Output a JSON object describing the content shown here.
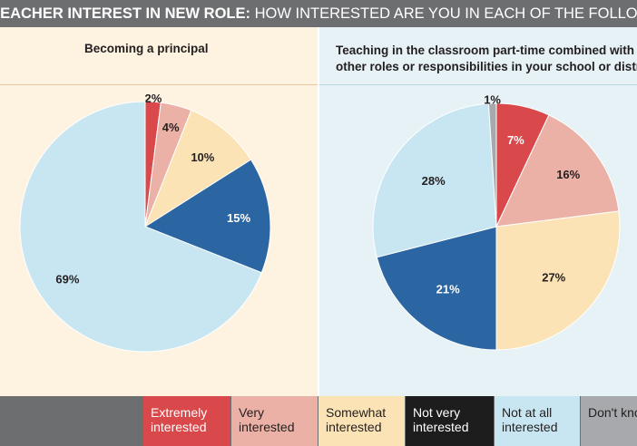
{
  "header": {
    "bold": "TEACHER INTEREST IN NEW ROLE:",
    "rest": " HOW INTERESTED ARE YOU IN EACH OF THE FOLLOWING?"
  },
  "chart_data": [
    {
      "type": "pie",
      "title": "Becoming a principal",
      "categories": [
        "Extremely interested",
        "Very interested",
        "Somewhat interested",
        "Not very interested",
        "Not at all interested"
      ],
      "values": [
        2,
        4,
        10,
        15,
        69
      ],
      "labels": [
        "2%",
        "4%",
        "10%",
        "15%",
        "69%"
      ]
    },
    {
      "type": "pie",
      "title": "Teaching in the classroom part-time combined with other roles or responsibilities in your school or district",
      "title_lines": [
        "Teaching in the classroom part-time combined with",
        "other roles or responsibilities in your school or district"
      ],
      "categories": [
        "Extremely interested",
        "Very interested",
        "Somewhat interested",
        "Not very interested",
        "Not at all interested",
        "Don't know"
      ],
      "values": [
        7,
        16,
        27,
        21,
        28,
        1
      ],
      "labels": [
        "7%",
        "16%",
        "27%",
        "21%",
        "28%",
        "1%"
      ]
    }
  ],
  "colors": {
    "Extremely interested": "#d9484a",
    "Very interested": "#ebb1a6",
    "Somewhat interested": "#fbe3b6",
    "Not very interested": "#2c66a2",
    "Not at all interested": "#c8e6f2",
    "Don't know": "#a7a9ac"
  },
  "legend": {
    "items": [
      {
        "lines": [
          "Extremely",
          "interested"
        ],
        "color": "#d9484a",
        "text_color": "#ffffff"
      },
      {
        "lines": [
          "Very",
          "interested"
        ],
        "color": "#ebb1a6",
        "text_color": "#231f20"
      },
      {
        "lines": [
          "Somewhat",
          "interested"
        ],
        "color": "#fbe3b6",
        "text_color": "#231f20"
      },
      {
        "lines": [
          "Not very",
          "interested"
        ],
        "color": "#1d1d1d",
        "text_color": "#ffffff"
      },
      {
        "lines": [
          "Not at all",
          "interested"
        ],
        "color": "#c8e6f2",
        "text_color": "#231f20"
      },
      {
        "lines": [
          "Don't know"
        ],
        "color": "#a7a9ac",
        "text_color": "#231f20"
      }
    ]
  }
}
